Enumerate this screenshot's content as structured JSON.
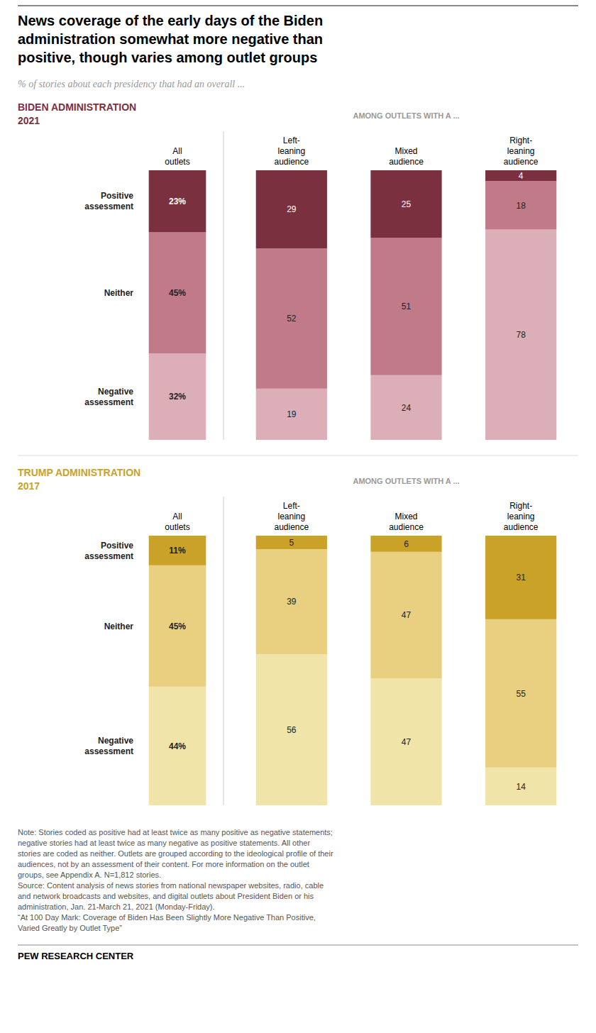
{
  "title": "News coverage of the early days of the Biden\nadministration somewhat more negative than\npositive, though varies among outlet groups",
  "subtitle": "% of stories about each presidency that had an overall ...",
  "chart_data": [
    {
      "type": "bar",
      "title": "BIDEN ADMINISTRATION\n2021",
      "annotations": [
        "AMONG OUTLETS WITH A ..."
      ],
      "categories": [
        "All\noutlets",
        "Left-\nleaning\naudience",
        "Mixed\naudience",
        "Right-\nleaning\naudience"
      ],
      "series": [
        {
          "name": "Negative\nassessment",
          "color": "#dbaeb8",
          "values": [
            32,
            19,
            24,
            78
          ],
          "value_labels": [
            "32%",
            "19",
            "24",
            "78"
          ]
        },
        {
          "name": "Neither",
          "color": "#c07a8a",
          "values": [
            45,
            52,
            51,
            18
          ],
          "value_labels": [
            "45%",
            "52",
            "51",
            "18"
          ]
        },
        {
          "name": "Positive\nassessment",
          "color": "#7b3040",
          "values": [
            23,
            29,
            25,
            4
          ],
          "value_labels": [
            "23%",
            "29",
            "25",
            "4"
          ]
        }
      ],
      "stacked": true,
      "data_labels": true,
      "ylim": [
        0,
        100
      ],
      "tick_labels": false,
      "grid": false
    },
    {
      "type": "bar",
      "title": "TRUMP ADMINISTRATION\n2017",
      "annotations": [
        "AMONG OUTLETS WITH A ..."
      ],
      "categories": [
        "All\noutlets",
        "Left-\nleaning\naudience",
        "Mixed\naudience",
        "Right-\nleaning\naudience"
      ],
      "series": [
        {
          "name": "Negative\nassessment",
          "color": "#f0e4a8",
          "values": [
            44,
            56,
            47,
            14
          ],
          "value_labels": [
            "44%",
            "56",
            "47",
            "14"
          ]
        },
        {
          "name": "Neither",
          "color": "#e8d080",
          "values": [
            45,
            39,
            47,
            55
          ],
          "value_labels": [
            "45%",
            "39",
            "47",
            "55"
          ]
        },
        {
          "name": "Positive\nassessment",
          "color": "#c9a227",
          "values": [
            11,
            5,
            6,
            31
          ],
          "value_labels": [
            "11%",
            "5",
            "6",
            "31"
          ]
        }
      ],
      "stacked": true,
      "data_labels": true,
      "ylim": [
        0,
        100
      ],
      "tick_labels": false,
      "grid": false
    }
  ],
  "notes": [
    "Note: Stories coded as positive had at least twice as many positive as negative statements;\nnegative stories had at least twice as many negative as positive statements. All other\nstories are coded as neither. Outlets are grouped according to the ideological profile of their\naudiences, not by an assessment of their content. For more information on the outlet\ngroups, see Appendix A. N=1,812 stories.",
    "Source: Content analysis of news stories from national newspaper websites, radio, cable\nand network broadcasts and websites, and digital outlets about President Biden or his\nadministration, Jan. 21-March 21, 2021 (Monday-Friday).",
    "“At 100 Day Mark: Coverage of Biden Has Been Slightly More Negative Than Positive,\nVaried Greatly by Outlet Type”"
  ],
  "footer": "PEW RESEARCH CENTER"
}
